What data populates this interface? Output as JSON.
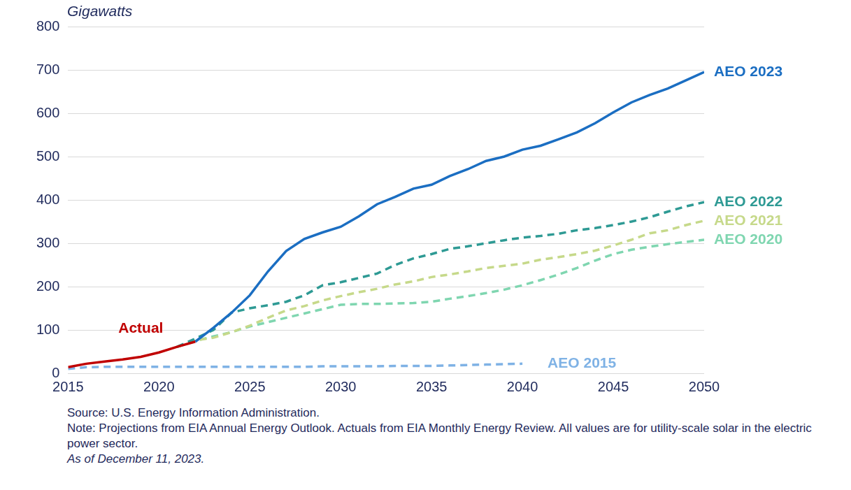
{
  "chart_data": {
    "type": "line",
    "y_label": "Gigawatts",
    "source": "Source: U.S. Energy Information Administration.",
    "note": "Note: Projections from EIA Annual Energy Outlook. Actuals from EIA Monthly Energy Review. All values are for utility-scale solar in the electric power sector.",
    "date": "As of December 11, 2023.",
    "x": [
      2015,
      2016,
      2017,
      2018,
      2019,
      2020,
      2021,
      2022,
      2023,
      2024,
      2025,
      2026,
      2027,
      2028,
      2029,
      2030,
      2031,
      2032,
      2033,
      2034,
      2035,
      2036,
      2037,
      2038,
      2039,
      2040,
      2041,
      2042,
      2043,
      2044,
      2045,
      2046,
      2047,
      2048,
      2049,
      2050
    ],
    "xlim": [
      2015,
      2050
    ],
    "xticks": [
      2015,
      2020,
      2025,
      2030,
      2035,
      2040,
      2045,
      2050
    ],
    "ylim": [
      0,
      800
    ],
    "yticks": [
      0,
      100,
      200,
      300,
      400,
      500,
      600,
      700,
      800
    ],
    "grid": true,
    "marker": "none",
    "series": [
      {
        "name": "Actual",
        "color": "#c00000",
        "line_style": "solid",
        "values": [
          14,
          22,
          27,
          32,
          38,
          48,
          61,
          73,
          null,
          null,
          null,
          null,
          null,
          null,
          null,
          null,
          null,
          null,
          null,
          null,
          null,
          null,
          null,
          null,
          null,
          null,
          null,
          null,
          null,
          null,
          null,
          null,
          null,
          null,
          null,
          null
        ]
      },
      {
        "name": "AEO 2023",
        "color": "#1b6ec2",
        "line_style": "solid",
        "values": [
          null,
          null,
          null,
          null,
          null,
          null,
          null,
          73,
          105,
          140,
          180,
          235,
          282,
          310,
          325,
          338,
          362,
          390,
          407,
          426,
          435,
          455,
          471,
          490,
          500,
          516,
          525,
          540,
          556,
          577,
          602,
          625,
          642,
          657,
          676,
          695
        ]
      },
      {
        "name": "AEO 2022",
        "color": "#2e9a94",
        "line_style": "dashed",
        "values": [
          null,
          null,
          null,
          null,
          null,
          null,
          61,
          80,
          100,
          140,
          150,
          157,
          165,
          180,
          203,
          210,
          220,
          230,
          250,
          265,
          275,
          287,
          293,
          300,
          307,
          313,
          317,
          322,
          330,
          335,
          342,
          350,
          360,
          373,
          385,
          395
        ]
      },
      {
        "name": "AEO 2021",
        "color": "#c6d98a",
        "line_style": "dashed",
        "values": [
          null,
          null,
          null,
          null,
          null,
          null,
          61,
          76,
          82,
          95,
          110,
          128,
          145,
          155,
          168,
          178,
          187,
          195,
          205,
          212,
          222,
          228,
          235,
          243,
          248,
          253,
          262,
          268,
          275,
          283,
          295,
          308,
          323,
          330,
          342,
          352
        ]
      },
      {
        "name": "AEO 2020",
        "color": "#7fd6b0",
        "line_style": "dashed",
        "values": [
          null,
          null,
          null,
          null,
          null,
          null,
          61,
          75,
          85,
          95,
          108,
          118,
          128,
          138,
          148,
          158,
          160,
          160,
          161,
          162,
          165,
          172,
          178,
          185,
          193,
          203,
          215,
          228,
          243,
          260,
          275,
          285,
          292,
          298,
          303,
          308
        ]
      },
      {
        "name": "AEO 2015",
        "color": "#7fb2e5",
        "line_style": "dashed",
        "values": [
          10,
          14,
          15,
          15,
          15,
          15,
          15,
          15,
          15,
          15,
          15,
          15,
          15,
          15,
          16,
          16,
          16,
          16,
          17,
          17,
          17,
          18,
          19,
          20,
          21,
          22,
          null,
          null,
          null,
          null,
          null,
          null,
          null,
          null,
          null,
          null
        ]
      }
    ]
  }
}
